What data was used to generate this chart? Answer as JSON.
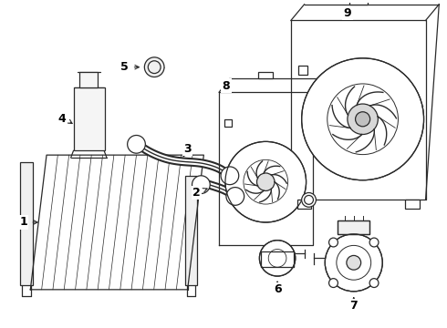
{
  "bg_color": "#ffffff",
  "lc": "#2a2a2a",
  "lw": 0.9,
  "fig_w": 4.9,
  "fig_h": 3.6,
  "dpi": 100
}
